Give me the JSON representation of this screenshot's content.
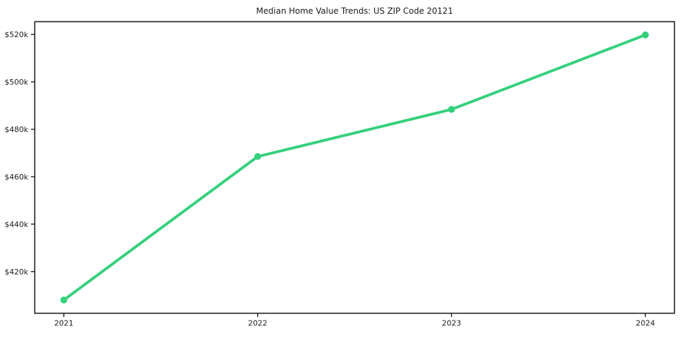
{
  "figure": {
    "background_color": "#ffffff"
  },
  "chart_data": {
    "type": "line",
    "title": "Median Home Value Trends: US ZIP Code 20121",
    "xlabel": "",
    "ylabel": "",
    "x": [
      2021,
      2022,
      2023,
      2024
    ],
    "x_tick_labels": [
      "2021",
      "2022",
      "2023",
      "2024"
    ],
    "series": [
      {
        "name": "Median Home Value",
        "values": [
          408000,
          468500,
          488400,
          519800
        ]
      }
    ],
    "y_tick_values": [
      420000,
      440000,
      460000,
      480000,
      500000,
      520000
    ],
    "y_tick_labels": [
      "$420k",
      "$440k",
      "$460k",
      "$480k",
      "$500k",
      "$520k"
    ],
    "xlim": [
      2020.85,
      2024.15
    ],
    "ylim": [
      402400,
      525400
    ],
    "grid": false,
    "legend_position": "none",
    "marker": "circle",
    "line_color": "#35d07c",
    "axis_color": "#1a1a1a",
    "text_color": "#1a1a1a"
  }
}
